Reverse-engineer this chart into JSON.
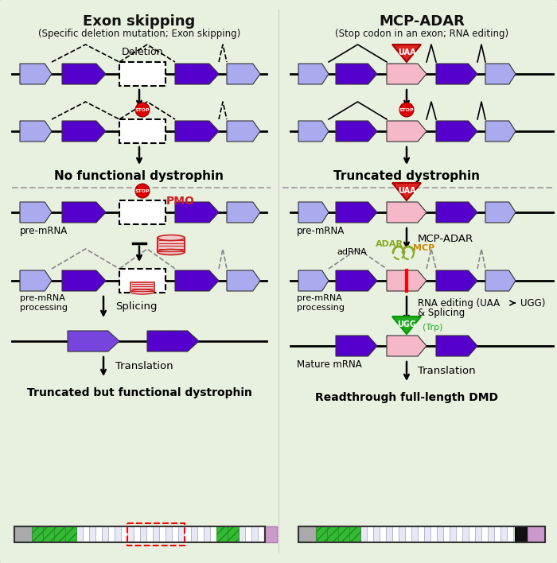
{
  "title_left": "Exon skipping",
  "subtitle_left": "(Specific deletion mutation; Exon skipping)",
  "title_right": "MCP-ADAR",
  "subtitle_right": "(Stop codon in an exon; RNA editing)",
  "bg_color": "#e8f0df",
  "exon_dark": "#5500cc",
  "exon_light": "#aaaaee",
  "exon_med": "#7744dd",
  "exon_pink": "#f5b8c8",
  "stop_red": "#dd0000",
  "uaa_red": "#dd2222",
  "ugg_green": "#22aa22",
  "mcp_orange": "#cc8800",
  "adar_green": "#88aa22",
  "pmo_red": "#cc2222",
  "text_black": "#111111",
  "gray_line": "#888888",
  "white": "#ffffff"
}
